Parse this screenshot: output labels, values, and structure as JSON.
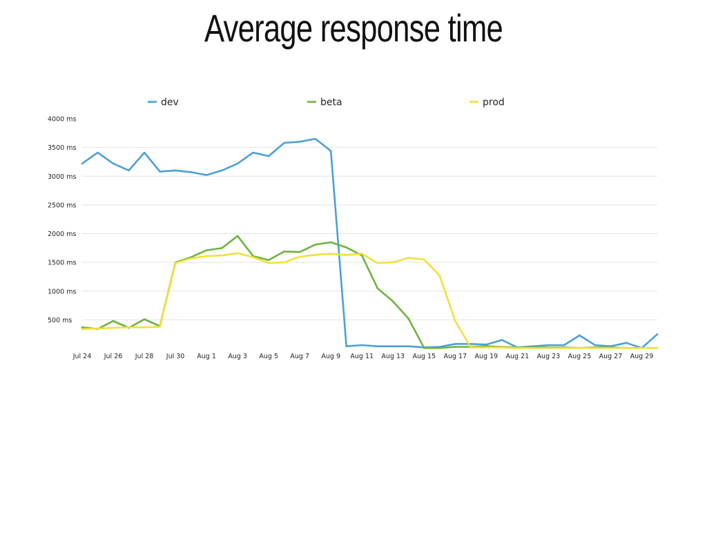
{
  "title": "Average response time",
  "chart_data": {
    "type": "line",
    "title": "Average response time",
    "xlabel": "",
    "ylabel": "",
    "ylim": [
      0,
      4000
    ],
    "grid": true,
    "legend_position": "top",
    "y_ticks": [
      500,
      1000,
      1500,
      2000,
      2500,
      3000,
      3500,
      4000
    ],
    "y_tick_labels": [
      "500 ms",
      "1000 ms",
      "1500 ms",
      "2000 ms",
      "2500 ms",
      "3000 ms",
      "3500 ms",
      "4000 ms"
    ],
    "x": [
      "Jul 24",
      "Jul 25",
      "Jul 26",
      "Jul 27",
      "Jul 28",
      "Jul 29",
      "Jul 30",
      "Jul 31",
      "Aug 1",
      "Aug 2",
      "Aug 3",
      "Aug 4",
      "Aug 5",
      "Aug 6",
      "Aug 7",
      "Aug 8",
      "Aug 9",
      "Aug 10",
      "Aug 11",
      "Aug 12",
      "Aug 13",
      "Aug 14",
      "Aug 15",
      "Aug 16",
      "Aug 17",
      "Aug 18",
      "Aug 19",
      "Aug 20",
      "Aug 21",
      "Aug 22",
      "Aug 23",
      "Aug 24",
      "Aug 25",
      "Aug 26",
      "Aug 27",
      "Aug 28",
      "Aug 29",
      "Aug 30"
    ],
    "x_tick_labels": [
      "Jul 24",
      "Jul 26",
      "Jul 28",
      "Jul 30",
      "Aug 1",
      "Aug 3",
      "Aug 5",
      "Aug 7",
      "Aug 9",
      "Aug 11",
      "Aug 13",
      "Aug 15",
      "Aug 17",
      "Aug 19",
      "Aug 21",
      "Aug 23",
      "Aug 25",
      "Aug 27",
      "Aug 29"
    ],
    "series": [
      {
        "name": "dev",
        "color": "#4a9fd8",
        "values": [
          3220,
          3410,
          3220,
          3100,
          3410,
          3080,
          3100,
          3070,
          3020,
          3100,
          3220,
          3410,
          3350,
          3580,
          3600,
          3650,
          3440,
          40,
          60,
          40,
          40,
          40,
          20,
          30,
          80,
          80,
          70,
          150,
          20,
          40,
          60,
          60,
          230,
          60,
          40,
          100,
          10,
          250
        ]
      },
      {
        "name": "beta",
        "color": "#6db33f",
        "values": [
          370,
          340,
          480,
          360,
          510,
          390,
          1500,
          1590,
          1710,
          1750,
          1960,
          1610,
          1540,
          1690,
          1680,
          1810,
          1850,
          1760,
          1620,
          1050,
          820,
          520,
          10,
          10,
          30,
          30,
          40,
          30,
          20,
          20,
          20,
          20,
          10,
          20,
          20,
          10,
          10,
          10
        ]
      },
      {
        "name": "prod",
        "color": "#f2df3a",
        "values": [
          340,
          350,
          360,
          370,
          370,
          380,
          1490,
          1570,
          1610,
          1620,
          1660,
          1590,
          1490,
          1500,
          1600,
          1630,
          1650,
          1630,
          1650,
          1490,
          1500,
          1580,
          1550,
          1270,
          480,
          20,
          20,
          20,
          10,
          10,
          10,
          10,
          10,
          10,
          10,
          10,
          10,
          10
        ]
      }
    ]
  }
}
